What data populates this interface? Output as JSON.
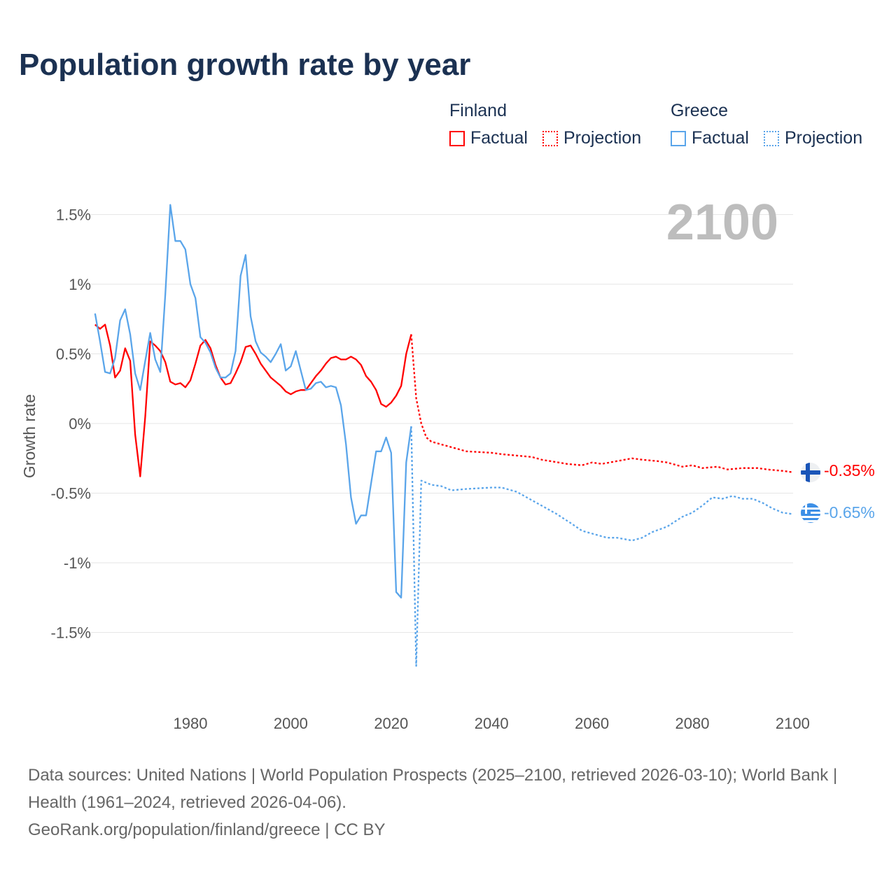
{
  "title": "Population growth rate by year",
  "legend": {
    "groups": [
      {
        "name": "Finland",
        "factual": "Factual",
        "projection": "Projection",
        "color": "#ff0000"
      },
      {
        "name": "Greece",
        "factual": "Factual",
        "projection": "Projection",
        "color": "#5aa5ea"
      }
    ]
  },
  "year_label": "2100",
  "end_labels": {
    "finland": "-0.35%",
    "greece": "-0.65%"
  },
  "footer": {
    "sources": "Data sources: United Nations | World Population Prospects (2025–2100, retrieved 2026-03-10); World Bank | Health (1961–2024, retrieved 2026-04-06).",
    "credit": "GeoRank.org/population/finland/greece | CC BY"
  },
  "chart_data": {
    "type": "line",
    "title": "Population growth rate by year",
    "xlabel": "",
    "ylabel": "Growth rate",
    "xlim": [
      1961,
      2100
    ],
    "ylim": [
      -1.9,
      1.9
    ],
    "xticks": [
      1980,
      2000,
      2020,
      2040,
      2060,
      2080,
      2100
    ],
    "yticks": [
      {
        "v": 1.5,
        "label": "1.5%"
      },
      {
        "v": 1,
        "label": "1%"
      },
      {
        "v": 0.5,
        "label": "0.5%"
      },
      {
        "v": 0,
        "label": "0%"
      },
      {
        "v": -0.5,
        "label": "-0.5%"
      },
      {
        "v": -1,
        "label": "-1%"
      },
      {
        "v": -1.5,
        "label": "-1.5%"
      }
    ],
    "grid": true,
    "legend_position": "top-right",
    "series": [
      {
        "name": "Finland Factual",
        "color": "#ff0000",
        "dashed": false,
        "x_start": 1961,
        "values": [
          0.71,
          0.68,
          0.71,
          0.56,
          0.33,
          0.38,
          0.54,
          0.45,
          -0.08,
          -0.38,
          0.05,
          0.59,
          0.56,
          0.52,
          0.44,
          0.3,
          0.28,
          0.29,
          0.26,
          0.31,
          0.43,
          0.56,
          0.6,
          0.54,
          0.42,
          0.33,
          0.28,
          0.29,
          0.36,
          0.44,
          0.55,
          0.56,
          0.5,
          0.43,
          0.38,
          0.33,
          0.3,
          0.27,
          0.23,
          0.21,
          0.23,
          0.24,
          0.24,
          0.29,
          0.34,
          0.38,
          0.43,
          0.47,
          0.48,
          0.46,
          0.46,
          0.48,
          0.46,
          0.42,
          0.34,
          0.3,
          0.24,
          0.14,
          0.12,
          0.15,
          0.2,
          0.27,
          0.5,
          0.64
        ]
      },
      {
        "name": "Finland Projection",
        "color": "#ff0000",
        "dashed": true,
        "points": [
          [
            2024,
            0.64
          ],
          [
            2025,
            0.18
          ],
          [
            2026,
            0.0
          ],
          [
            2027,
            -0.1
          ],
          [
            2028,
            -0.13
          ],
          [
            2030,
            -0.15
          ],
          [
            2032,
            -0.17
          ],
          [
            2035,
            -0.2
          ],
          [
            2040,
            -0.21
          ],
          [
            2042,
            -0.22
          ],
          [
            2045,
            -0.23
          ],
          [
            2048,
            -0.24
          ],
          [
            2050,
            -0.26
          ],
          [
            2055,
            -0.29
          ],
          [
            2058,
            -0.3
          ],
          [
            2060,
            -0.28
          ],
          [
            2062,
            -0.29
          ],
          [
            2065,
            -0.27
          ],
          [
            2068,
            -0.25
          ],
          [
            2070,
            -0.26
          ],
          [
            2073,
            -0.27
          ],
          [
            2075,
            -0.28
          ],
          [
            2078,
            -0.31
          ],
          [
            2080,
            -0.3
          ],
          [
            2082,
            -0.32
          ],
          [
            2085,
            -0.31
          ],
          [
            2087,
            -0.33
          ],
          [
            2090,
            -0.32
          ],
          [
            2093,
            -0.32
          ],
          [
            2095,
            -0.33
          ],
          [
            2098,
            -0.34
          ],
          [
            2100,
            -0.35
          ]
        ]
      },
      {
        "name": "Greece Factual",
        "color": "#5aa5ea",
        "dashed": false,
        "x_start": 1961,
        "values": [
          0.79,
          0.59,
          0.37,
          0.36,
          0.47,
          0.74,
          0.82,
          0.64,
          0.36,
          0.24,
          0.45,
          0.65,
          0.46,
          0.37,
          0.93,
          1.57,
          1.31,
          1.31,
          1.25,
          1.0,
          0.9,
          0.62,
          0.58,
          0.51,
          0.4,
          0.33,
          0.33,
          0.36,
          0.52,
          1.06,
          1.21,
          0.77,
          0.59,
          0.51,
          0.48,
          0.44,
          0.5,
          0.57,
          0.38,
          0.41,
          0.52,
          0.38,
          0.24,
          0.25,
          0.29,
          0.3,
          0.26,
          0.27,
          0.26,
          0.13,
          -0.15,
          -0.53,
          -0.72,
          -0.66,
          -0.66,
          -0.43,
          -0.2,
          -0.2,
          -0.1,
          -0.21,
          -1.21,
          -1.25,
          -0.28,
          -0.02
        ]
      },
      {
        "name": "Greece Projection",
        "color": "#5aa5ea",
        "dashed": true,
        "points": [
          [
            2024,
            -0.02
          ],
          [
            2025,
            -1.74
          ],
          [
            2026,
            -0.41
          ],
          [
            2028,
            -0.44
          ],
          [
            2030,
            -0.45
          ],
          [
            2032,
            -0.48
          ],
          [
            2035,
            -0.47
          ],
          [
            2040,
            -0.46
          ],
          [
            2042,
            -0.46
          ],
          [
            2045,
            -0.49
          ],
          [
            2048,
            -0.55
          ],
          [
            2050,
            -0.59
          ],
          [
            2053,
            -0.65
          ],
          [
            2056,
            -0.72
          ],
          [
            2058,
            -0.77
          ],
          [
            2060,
            -0.79
          ],
          [
            2063,
            -0.82
          ],
          [
            2065,
            -0.82
          ],
          [
            2068,
            -0.84
          ],
          [
            2070,
            -0.82
          ],
          [
            2072,
            -0.78
          ],
          [
            2075,
            -0.74
          ],
          [
            2078,
            -0.67
          ],
          [
            2080,
            -0.64
          ],
          [
            2082,
            -0.59
          ],
          [
            2084,
            -0.53
          ],
          [
            2086,
            -0.54
          ],
          [
            2088,
            -0.52
          ],
          [
            2090,
            -0.54
          ],
          [
            2092,
            -0.54
          ],
          [
            2094,
            -0.57
          ],
          [
            2096,
            -0.61
          ],
          [
            2098,
            -0.64
          ],
          [
            2100,
            -0.65
          ]
        ]
      }
    ]
  }
}
